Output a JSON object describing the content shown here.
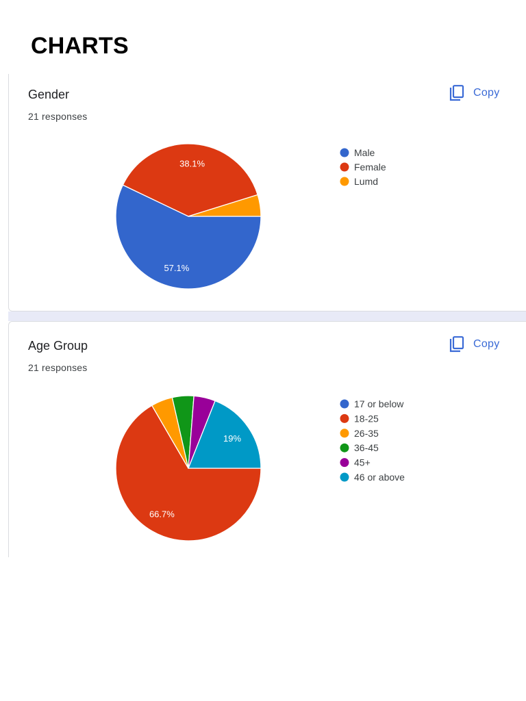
{
  "page": {
    "heading": "CHARTS"
  },
  "colors": {
    "accent": "#3a6ad6",
    "band": "#e8eaf7",
    "card_border": "#dadce0"
  },
  "cards": [
    {
      "title": "Gender",
      "responses": "21 responses",
      "copy_label": "Copy",
      "copy_icon": "copy-icon"
    },
    {
      "title": "Age Group",
      "responses": "21 responses",
      "copy_label": "Copy",
      "copy_icon": "copy-icon"
    }
  ],
  "chart_data": [
    {
      "type": "pie",
      "title": "Gender",
      "legend_position": "right",
      "slices": [
        {
          "label": "Male",
          "value": 57.1,
          "color": "#3366cc",
          "data_label": "57.1%"
        },
        {
          "label": "Female",
          "value": 38.1,
          "color": "#dc3912",
          "data_label": "38.1%"
        },
        {
          "label": "Lumd",
          "value": 4.8,
          "color": "#ff9900",
          "data_label": ""
        }
      ]
    },
    {
      "type": "pie",
      "title": "Age Group",
      "legend_position": "right",
      "slices": [
        {
          "label": "17 or below",
          "value": 0,
          "color": "#3366cc",
          "data_label": ""
        },
        {
          "label": "18-25",
          "value": 66.7,
          "color": "#dc3912",
          "data_label": "66.7%"
        },
        {
          "label": "26-35",
          "value": 4.8,
          "color": "#ff9900",
          "data_label": ""
        },
        {
          "label": "36-45",
          "value": 4.8,
          "color": "#109618",
          "data_label": ""
        },
        {
          "label": "45+",
          "value": 4.8,
          "color": "#990099",
          "data_label": ""
        },
        {
          "label": "46 or above",
          "value": 19,
          "color": "#0099c6",
          "data_label": "19%"
        }
      ]
    }
  ]
}
